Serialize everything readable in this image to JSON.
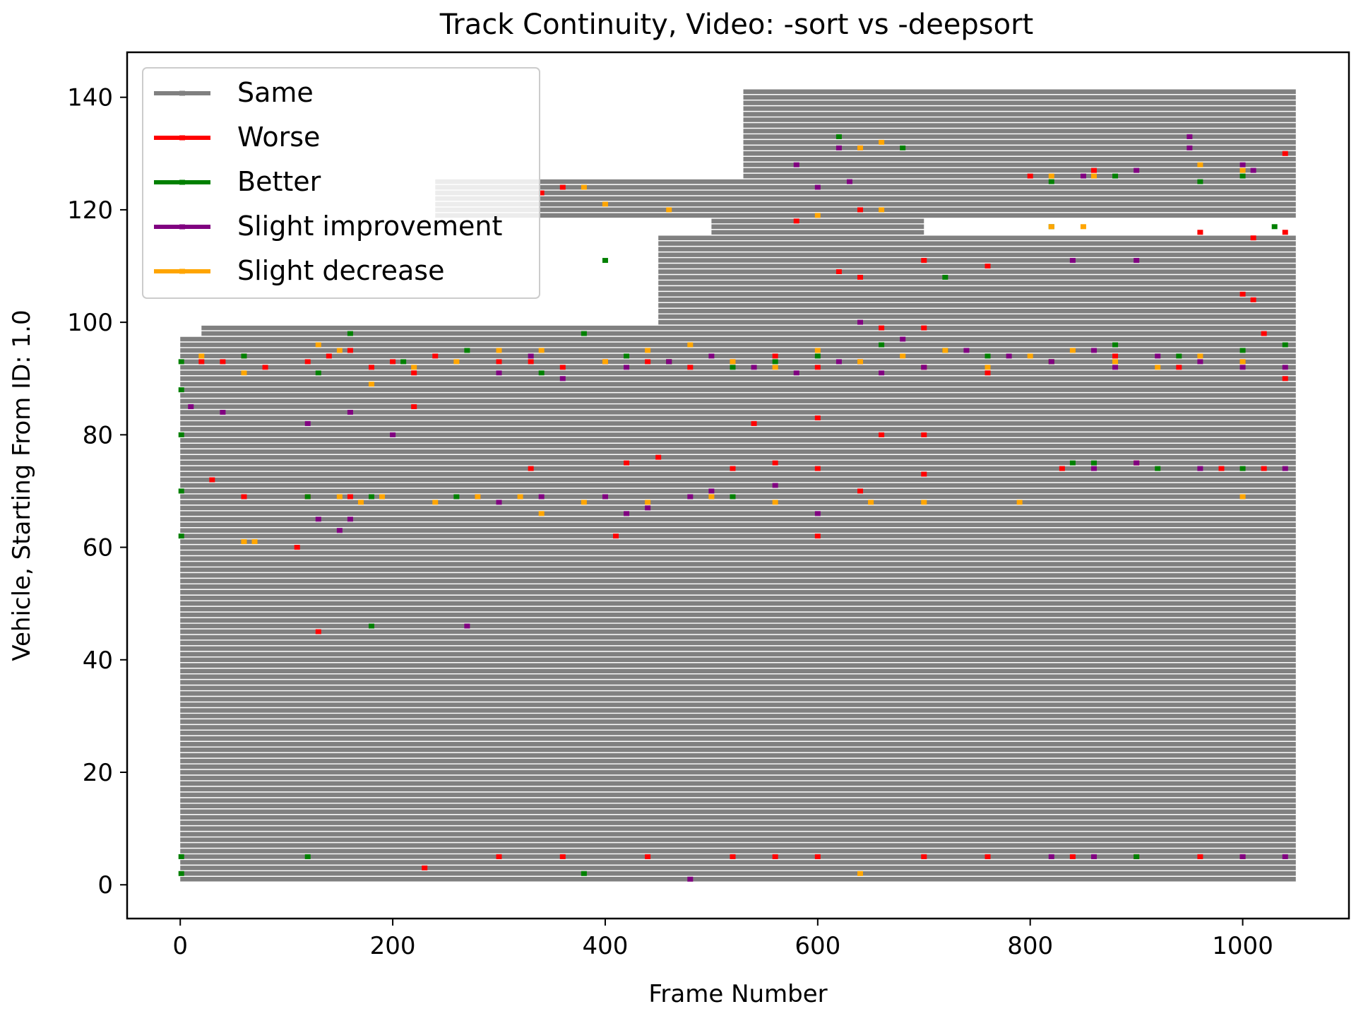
{
  "chart_data": {
    "type": "line",
    "title": "Track Continuity, Video: -sort vs -deepsort",
    "xlabel": "Frame Number",
    "ylabel": "Vehicle, Starting From ID: 1.0",
    "xlim": [
      -50,
      1100
    ],
    "ylim": [
      -6,
      148
    ],
    "xticks": [
      0,
      200,
      400,
      600,
      800,
      1000
    ],
    "yticks": [
      0,
      20,
      40,
      60,
      80,
      100,
      120,
      140
    ],
    "grid": false,
    "legend_position": "top-left",
    "colors": {
      "Same": "#808080",
      "Worse": "#ff0000",
      "Better": "#008000",
      "Slight improvement": "#800080",
      "Slight decrease": "#ffa500"
    },
    "series": [
      {
        "name": "Same",
        "segments": [
          {
            "y": [
              1,
              60
            ],
            "x": [
              0,
              1050
            ]
          },
          {
            "y": [
              61,
              77
            ],
            "x": [
              0,
              1050
            ]
          },
          {
            "y": [
              78,
              97
            ],
            "x": [
              0,
              1050
            ]
          },
          {
            "y": [
              98,
              99
            ],
            "x": [
              20,
              1050
            ]
          },
          {
            "y": [
              100,
              115
            ],
            "x": [
              450,
              1050
            ]
          },
          {
            "y": [
              116,
              118
            ],
            "x": [
              500,
              700
            ]
          },
          {
            "y": [
              119,
              125
            ],
            "x": [
              240,
              1050
            ]
          },
          {
            "y": [
              126,
              141
            ],
            "x": [
              530,
              1050
            ]
          }
        ]
      },
      {
        "name": "Worse",
        "points": [
          [
            20,
            93
          ],
          [
            40,
            93
          ],
          [
            60,
            94
          ],
          [
            80,
            92
          ],
          [
            120,
            93
          ],
          [
            140,
            94
          ],
          [
            160,
            95
          ],
          [
            180,
            92
          ],
          [
            200,
            93
          ],
          [
            220,
            91
          ],
          [
            240,
            94
          ],
          [
            300,
            93
          ],
          [
            330,
            93
          ],
          [
            360,
            92
          ],
          [
            400,
            93
          ],
          [
            440,
            93
          ],
          [
            460,
            93
          ],
          [
            480,
            92
          ],
          [
            520,
            93
          ],
          [
            560,
            94
          ],
          [
            600,
            92
          ],
          [
            640,
            93
          ],
          [
            700,
            92
          ],
          [
            760,
            91
          ],
          [
            820,
            93
          ],
          [
            880,
            94
          ],
          [
            940,
            92
          ],
          [
            1000,
            93
          ],
          [
            1040,
            90
          ],
          [
            30,
            72
          ],
          [
            60,
            69
          ],
          [
            120,
            69
          ],
          [
            160,
            69
          ],
          [
            220,
            85
          ],
          [
            330,
            74
          ],
          [
            420,
            75
          ],
          [
            450,
            76
          ],
          [
            520,
            74
          ],
          [
            560,
            75
          ],
          [
            600,
            74
          ],
          [
            640,
            70
          ],
          [
            700,
            73
          ],
          [
            830,
            74
          ],
          [
            900,
            75
          ],
          [
            980,
            74
          ],
          [
            1020,
            74
          ],
          [
            540,
            82
          ],
          [
            600,
            83
          ],
          [
            660,
            80
          ],
          [
            700,
            80
          ],
          [
            230,
            3
          ],
          [
            300,
            5
          ],
          [
            360,
            5
          ],
          [
            440,
            5
          ],
          [
            520,
            5
          ],
          [
            560,
            5
          ],
          [
            600,
            5
          ],
          [
            700,
            5
          ],
          [
            760,
            5
          ],
          [
            840,
            5
          ],
          [
            900,
            5
          ],
          [
            960,
            5
          ],
          [
            1000,
            5
          ],
          [
            110,
            60
          ],
          [
            130,
            45
          ],
          [
            410,
            62
          ],
          [
            600,
            62
          ],
          [
            660,
            99
          ],
          [
            700,
            99
          ],
          [
            1000,
            105
          ],
          [
            1010,
            104
          ],
          [
            700,
            111
          ],
          [
            760,
            110
          ],
          [
            800,
            126
          ],
          [
            860,
            127
          ],
          [
            960,
            116
          ],
          [
            1010,
            115
          ],
          [
            1040,
            116
          ],
          [
            1040,
            130
          ],
          [
            1020,
            98
          ],
          [
            580,
            118
          ],
          [
            640,
            120
          ],
          [
            360,
            124
          ],
          [
            340,
            123
          ],
          [
            620,
            109
          ],
          [
            640,
            108
          ]
        ]
      },
      {
        "name": "Better",
        "points": [
          [
            1,
            62
          ],
          [
            1,
            70
          ],
          [
            1,
            80
          ],
          [
            1,
            88
          ],
          [
            1,
            93
          ],
          [
            1,
            2
          ],
          [
            1,
            5
          ],
          [
            60,
            94
          ],
          [
            130,
            91
          ],
          [
            160,
            98
          ],
          [
            210,
            93
          ],
          [
            270,
            95
          ],
          [
            340,
            91
          ],
          [
            380,
            98
          ],
          [
            420,
            94
          ],
          [
            460,
            93
          ],
          [
            520,
            92
          ],
          [
            560,
            93
          ],
          [
            600,
            94
          ],
          [
            660,
            96
          ],
          [
            720,
            95
          ],
          [
            760,
            94
          ],
          [
            820,
            93
          ],
          [
            880,
            96
          ],
          [
            940,
            94
          ],
          [
            1000,
            95
          ],
          [
            1040,
            96
          ],
          [
            120,
            69
          ],
          [
            180,
            69
          ],
          [
            260,
            69
          ],
          [
            520,
            69
          ],
          [
            840,
            75
          ],
          [
            860,
            75
          ],
          [
            920,
            74
          ],
          [
            1000,
            74
          ],
          [
            180,
            46
          ],
          [
            380,
            2
          ],
          [
            720,
            108
          ],
          [
            820,
            125
          ],
          [
            880,
            126
          ],
          [
            960,
            125
          ],
          [
            1000,
            126
          ],
          [
            620,
            133
          ],
          [
            820,
            117
          ],
          [
            1030,
            117
          ],
          [
            400,
            111
          ],
          [
            680,
            131
          ],
          [
            120,
            5
          ],
          [
            900,
            5
          ]
        ]
      },
      {
        "name": "Slight improvement",
        "points": [
          [
            10,
            85
          ],
          [
            40,
            84
          ],
          [
            120,
            82
          ],
          [
            160,
            84
          ],
          [
            200,
            80
          ],
          [
            300,
            91
          ],
          [
            330,
            94
          ],
          [
            360,
            90
          ],
          [
            420,
            92
          ],
          [
            460,
            93
          ],
          [
            500,
            94
          ],
          [
            540,
            92
          ],
          [
            580,
            91
          ],
          [
            620,
            93
          ],
          [
            660,
            91
          ],
          [
            700,
            92
          ],
          [
            740,
            95
          ],
          [
            780,
            94
          ],
          [
            820,
            93
          ],
          [
            860,
            95
          ],
          [
            880,
            92
          ],
          [
            920,
            94
          ],
          [
            960,
            93
          ],
          [
            1000,
            92
          ],
          [
            1040,
            92
          ],
          [
            130,
            65
          ],
          [
            150,
            63
          ],
          [
            160,
            65
          ],
          [
            280,
            69
          ],
          [
            300,
            68
          ],
          [
            340,
            69
          ],
          [
            400,
            69
          ],
          [
            420,
            66
          ],
          [
            440,
            67
          ],
          [
            480,
            69
          ],
          [
            500,
            70
          ],
          [
            560,
            71
          ],
          [
            600,
            66
          ],
          [
            860,
            74
          ],
          [
            900,
            75
          ],
          [
            960,
            74
          ],
          [
            1040,
            74
          ],
          [
            950,
            133
          ],
          [
            950,
            131
          ],
          [
            580,
            128
          ],
          [
            620,
            131
          ],
          [
            640,
            131
          ],
          [
            600,
            124
          ],
          [
            630,
            125
          ],
          [
            850,
            126
          ],
          [
            900,
            127
          ],
          [
            1000,
            128
          ],
          [
            1010,
            127
          ],
          [
            640,
            100
          ],
          [
            680,
            97
          ],
          [
            840,
            111
          ],
          [
            900,
            111
          ],
          [
            1000,
            5
          ],
          [
            1040,
            5
          ],
          [
            480,
            1
          ],
          [
            270,
            46
          ],
          [
            820,
            5
          ],
          [
            860,
            5
          ]
        ]
      },
      {
        "name": "Slight decrease",
        "points": [
          [
            20,
            94
          ],
          [
            60,
            91
          ],
          [
            130,
            96
          ],
          [
            150,
            95
          ],
          [
            180,
            89
          ],
          [
            220,
            92
          ],
          [
            260,
            93
          ],
          [
            300,
            95
          ],
          [
            340,
            95
          ],
          [
            400,
            93
          ],
          [
            440,
            95
          ],
          [
            480,
            96
          ],
          [
            520,
            93
          ],
          [
            560,
            92
          ],
          [
            600,
            95
          ],
          [
            640,
            93
          ],
          [
            680,
            94
          ],
          [
            720,
            95
          ],
          [
            760,
            92
          ],
          [
            800,
            94
          ],
          [
            840,
            95
          ],
          [
            880,
            93
          ],
          [
            920,
            92
          ],
          [
            960,
            94
          ],
          [
            1000,
            93
          ],
          [
            60,
            61
          ],
          [
            70,
            61
          ],
          [
            150,
            69
          ],
          [
            170,
            68
          ],
          [
            190,
            69
          ],
          [
            240,
            68
          ],
          [
            280,
            69
          ],
          [
            320,
            69
          ],
          [
            340,
            66
          ],
          [
            380,
            68
          ],
          [
            440,
            68
          ],
          [
            500,
            69
          ],
          [
            560,
            68
          ],
          [
            650,
            68
          ],
          [
            700,
            68
          ],
          [
            790,
            68
          ],
          [
            1000,
            69
          ],
          [
            640,
            2
          ],
          [
            820,
            117
          ],
          [
            850,
            117
          ],
          [
            960,
            128
          ],
          [
            1000,
            127
          ],
          [
            640,
            131
          ],
          [
            660,
            132
          ],
          [
            380,
            124
          ],
          [
            400,
            121
          ],
          [
            460,
            120
          ],
          [
            600,
            119
          ],
          [
            660,
            120
          ],
          [
            820,
            126
          ],
          [
            860,
            126
          ]
        ]
      }
    ]
  }
}
